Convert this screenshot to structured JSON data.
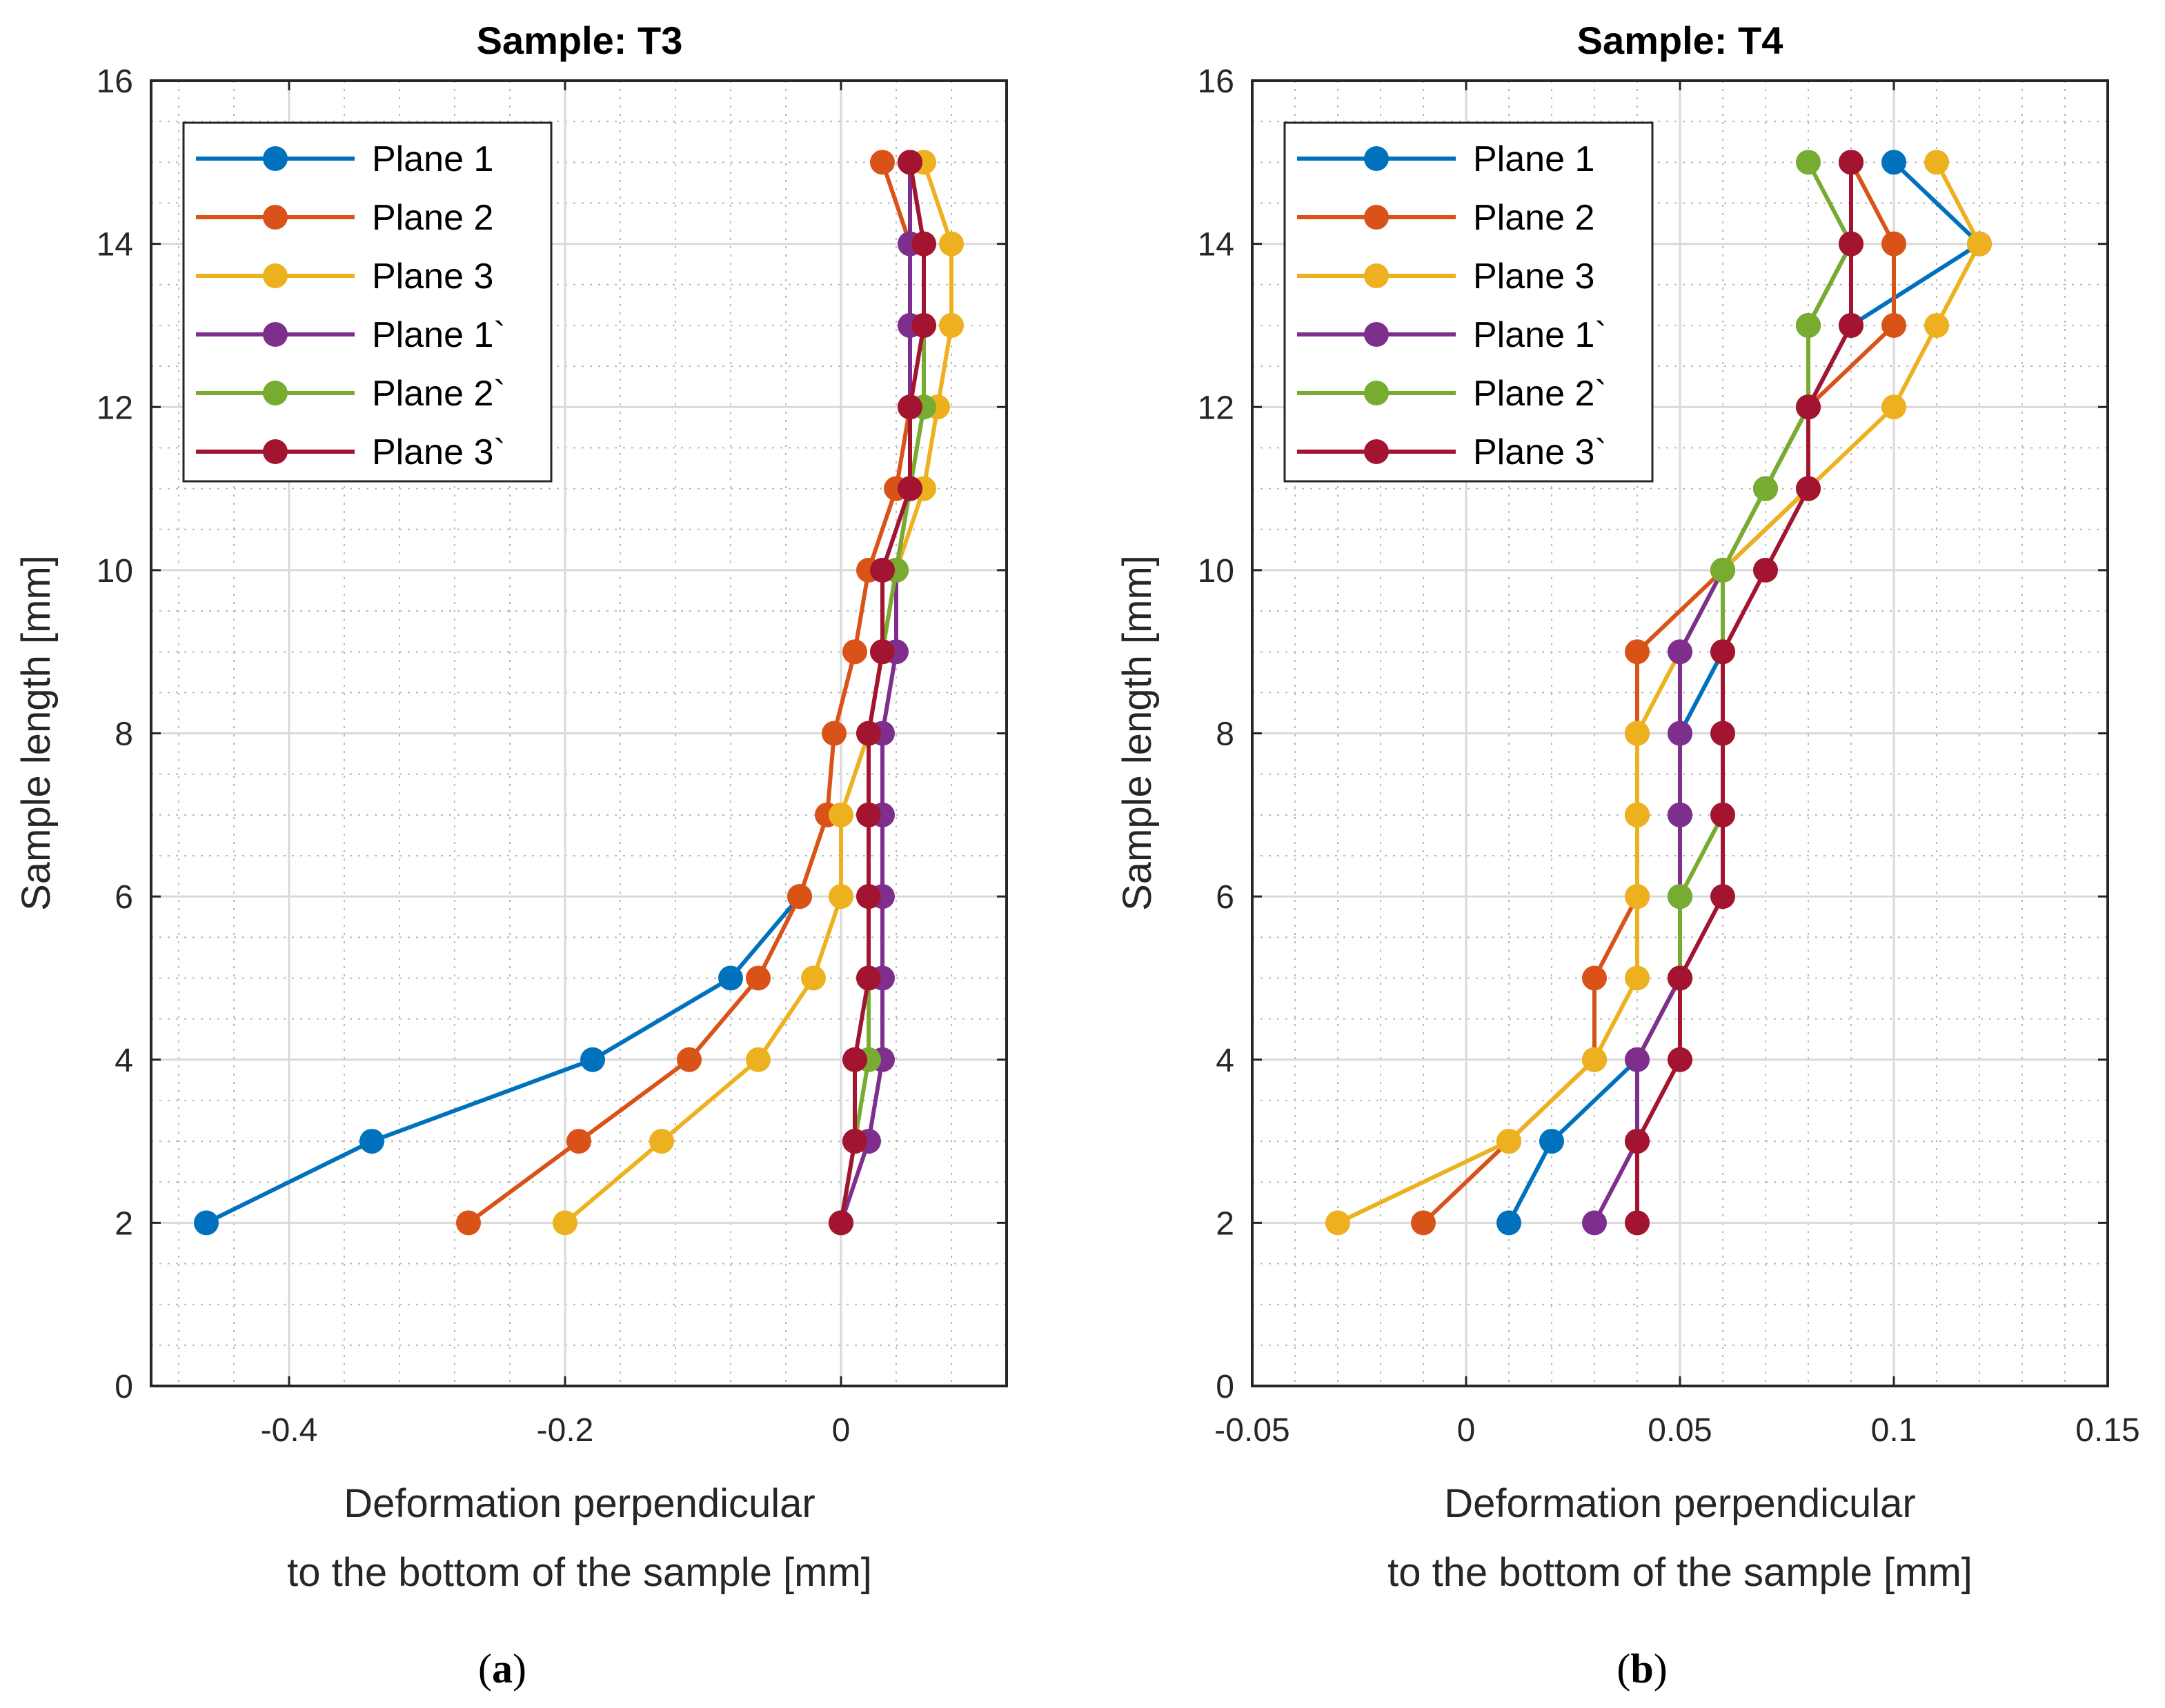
{
  "chart_data": [
    {
      "type": "line",
      "panel_label_open": "(",
      "panel_label_letter": "a",
      "panel_label_close": ")",
      "title": "Sample: T3",
      "xlabel_line1": "Deformation perpendicular",
      "xlabel_line2": "to the bottom of the sample [mm]",
      "ylabel": "Sample length [mm]",
      "xlim": [
        -0.5,
        0.12
      ],
      "ylim": [
        0,
        16
      ],
      "xticks": [
        -0.4,
        -0.2,
        0
      ],
      "xtick_labels": [
        "-0.4",
        "-0.2",
        "0"
      ],
      "yticks": [
        0,
        2,
        4,
        6,
        8,
        10,
        12,
        14,
        16
      ],
      "ytick_labels": [
        "0",
        "2",
        "4",
        "6",
        "8",
        "10",
        "12",
        "14",
        "16"
      ],
      "legend_position": "top-left",
      "grid": true,
      "minor_grid": true,
      "series": [
        {
          "name": "Plane 1",
          "color": "#0072BD",
          "x": [
            -0.46,
            -0.34,
            -0.18,
            -0.08,
            -0.03
          ],
          "y": [
            2,
            3,
            4,
            5,
            6
          ]
        },
        {
          "name": "Plane 2",
          "color": "#D95319",
          "x": [
            -0.27,
            -0.19,
            -0.11,
            -0.06,
            -0.03,
            -0.01,
            -0.005,
            0.01,
            0.02,
            0.04,
            0.05,
            0.05,
            0.05,
            0.03
          ],
          "y": [
            2,
            3,
            4,
            5,
            6,
            7,
            8,
            9,
            10,
            11,
            12,
            13,
            14,
            15
          ]
        },
        {
          "name": "Plane 3",
          "color": "#EDB120",
          "x": [
            -0.2,
            -0.13,
            -0.06,
            -0.02,
            0.0,
            0.0,
            0.02,
            0.03,
            0.04,
            0.06,
            0.07,
            0.08,
            0.08,
            0.06
          ],
          "y": [
            2,
            3,
            4,
            5,
            6,
            7,
            8,
            9,
            10,
            11,
            12,
            13,
            14,
            15
          ]
        },
        {
          "name": "Plane 1`",
          "color": "#7E2F8E",
          "x": [
            0.0,
            0.02,
            0.03,
            0.03,
            0.03,
            0.03,
            0.03,
            0.04,
            0.04,
            0.05,
            0.05,
            0.05,
            0.05,
            0.05
          ],
          "y": [
            2,
            3,
            4,
            5,
            6,
            7,
            8,
            9,
            10,
            11,
            12,
            13,
            14,
            15
          ]
        },
        {
          "name": "Plane 2`",
          "color": "#77AC30",
          "x": [
            0.0,
            0.01,
            0.02,
            0.02,
            0.02,
            0.02,
            0.02,
            0.03,
            0.04,
            0.05,
            0.06,
            0.06,
            0.06,
            0.05
          ],
          "y": [
            2,
            3,
            4,
            5,
            6,
            7,
            8,
            9,
            10,
            11,
            12,
            13,
            14,
            15
          ]
        },
        {
          "name": "Plane 3`",
          "color": "#A2142F",
          "x": [
            0.0,
            0.01,
            0.01,
            0.02,
            0.02,
            0.02,
            0.02,
            0.03,
            0.03,
            0.05,
            0.05,
            0.06,
            0.06,
            0.05
          ],
          "y": [
            2,
            3,
            4,
            5,
            6,
            7,
            8,
            9,
            10,
            11,
            12,
            13,
            14,
            15
          ]
        }
      ]
    },
    {
      "type": "line",
      "panel_label_open": "(",
      "panel_label_letter": "b",
      "panel_label_close": ")",
      "title": "Sample: T4",
      "xlabel_line1": "Deformation perpendicular",
      "xlabel_line2": "to the bottom of the sample [mm]",
      "ylabel": "Sample length [mm]",
      "xlim": [
        -0.05,
        0.15
      ],
      "ylim": [
        0,
        16
      ],
      "xticks": [
        -0.05,
        0,
        0.05,
        0.1,
        0.15
      ],
      "xtick_labels": [
        "-0.05",
        "0",
        "0.05",
        "0.1",
        "0.15"
      ],
      "yticks": [
        0,
        2,
        4,
        6,
        8,
        10,
        12,
        14,
        16
      ],
      "ytick_labels": [
        "0",
        "2",
        "4",
        "6",
        "8",
        "10",
        "12",
        "14",
        "16"
      ],
      "legend_position": "top-left",
      "grid": true,
      "minor_grid": true,
      "series": [
        {
          "name": "Plane 1",
          "color": "#0072BD",
          "x": [
            0.01,
            0.02,
            0.04,
            0.05,
            0.05,
            0.05,
            0.05,
            0.06,
            0.06,
            0.08,
            0.08,
            0.09,
            0.12,
            0.1
          ],
          "y": [
            2,
            3,
            4,
            5,
            6,
            7,
            8,
            9,
            10,
            11,
            12,
            13,
            14,
            15
          ]
        },
        {
          "name": "Plane 2",
          "color": "#D95319",
          "x": [
            -0.01,
            0.01,
            0.03,
            0.03,
            0.04,
            0.04,
            0.04,
            0.04,
            0.06,
            0.08,
            0.08,
            0.1,
            0.1,
            0.09
          ],
          "y": [
            2,
            3,
            4,
            5,
            6,
            7,
            8,
            9,
            10,
            11,
            12,
            13,
            14,
            15
          ]
        },
        {
          "name": "Plane 3",
          "color": "#EDB120",
          "x": [
            -0.03,
            0.01,
            0.03,
            0.04,
            0.04,
            0.04,
            0.04,
            0.05,
            0.06,
            0.08,
            0.1,
            0.11,
            0.12,
            0.11
          ],
          "y": [
            2,
            3,
            4,
            5,
            6,
            7,
            8,
            9,
            10,
            11,
            12,
            13,
            14,
            15
          ]
        },
        {
          "name": "Plane 1`",
          "color": "#7E2F8E",
          "x": [
            0.03,
            0.04,
            0.04,
            0.05,
            0.05,
            0.05,
            0.05,
            0.05,
            0.06,
            0.07,
            0.08,
            0.08,
            0.09,
            0.09
          ],
          "y": [
            2,
            3,
            4,
            5,
            6,
            7,
            8,
            9,
            10,
            11,
            12,
            13,
            14,
            15
          ]
        },
        {
          "name": "Plane 2`",
          "color": "#77AC30",
          "x": [
            0.04,
            0.04,
            0.05,
            0.05,
            0.05,
            0.06,
            0.06,
            0.06,
            0.06,
            0.07,
            0.08,
            0.08,
            0.09,
            0.08
          ],
          "y": [
            2,
            3,
            4,
            5,
            6,
            7,
            8,
            9,
            10,
            11,
            12,
            13,
            14,
            15
          ]
        },
        {
          "name": "Plane 3`",
          "color": "#A2142F",
          "x": [
            0.04,
            0.04,
            0.05,
            0.05,
            0.06,
            0.06,
            0.06,
            0.06,
            0.07,
            0.08,
            0.08,
            0.09,
            0.09,
            0.09
          ],
          "y": [
            2,
            3,
            4,
            5,
            6,
            7,
            8,
            9,
            10,
            11,
            12,
            13,
            14,
            15
          ]
        }
      ]
    }
  ]
}
